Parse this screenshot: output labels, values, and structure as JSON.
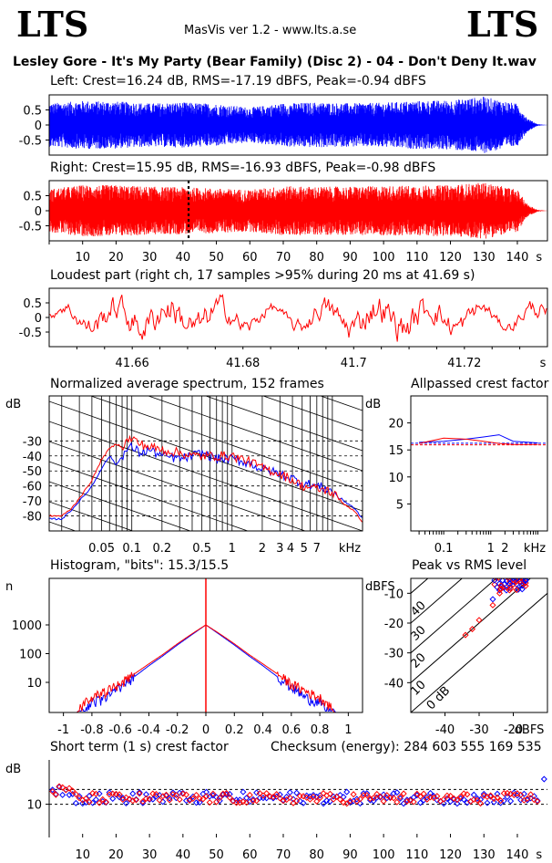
{
  "header": {
    "logo_left": "LTS",
    "logo_right": "LTS",
    "app": "MasVis ver 1.2 - www.lts.a.se",
    "file_title": "Lesley Gore - It's My Party (Bear Family) (Disc 2) - 04 - Don't Deny It.wav"
  },
  "colors": {
    "left": "#0000ff",
    "right": "#ff0000"
  },
  "panels": {
    "left_title": "Left: Crest=16.24 dB, RMS=-17.19 dBFS, Peak=-0.94 dBFS",
    "right_title": "Right: Crest=15.95 dB, RMS=-16.93 dBFS, Peak=-0.98 dBFS",
    "loudest_title": "Loudest part (right ch, 17 samples >95% during 20 ms at 41.69 s)",
    "spectrum_title": "Normalized average spectrum, 152 frames",
    "allpass_title": "Allpassed crest factor",
    "hist_title": "Histogram, \"bits\": 15.3/15.5",
    "peakrms_title": "Peak vs RMS level",
    "crest_title": "Short term (1 s) crest factor",
    "checksum": "Checksum (energy):   284 603 555 169 535"
  },
  "chart_data": [
    {
      "type": "line",
      "name": "left-waveform",
      "title": "Left: Crest=16.24 dB, RMS=-17.19 dBFS, Peak=-0.94 dBFS",
      "xlim": [
        0,
        149
      ],
      "ylim": [
        -1,
        1
      ],
      "yticks": [
        "0.5",
        "0",
        "-0.5"
      ],
      "peak_envelope_x": [
        0,
        10,
        20,
        30,
        40,
        50,
        60,
        70,
        80,
        90,
        100,
        110,
        120,
        130,
        140,
        143,
        146,
        149
      ],
      "peak_envelope_y": [
        0.72,
        0.8,
        0.78,
        0.72,
        0.75,
        0.7,
        0.58,
        0.72,
        0.75,
        0.72,
        0.74,
        0.8,
        0.82,
        0.94,
        0.7,
        0.22,
        0.03,
        0.0
      ]
    },
    {
      "type": "line",
      "name": "right-waveform",
      "title": "Right: Crest=15.95 dB, RMS=-16.93 dBFS, Peak=-0.98 dBFS",
      "xlim": [
        0,
        149
      ],
      "ylim": [
        -1,
        1
      ],
      "yticks": [
        "0.5",
        "0",
        "-0.5"
      ],
      "xtick_labels": [
        "10",
        "20",
        "30",
        "40",
        "50",
        "60",
        "70",
        "80",
        "90",
        "100",
        "110",
        "120",
        "130",
        "140",
        "s"
      ],
      "marker_x": 41.69,
      "peak_envelope_x": [
        0,
        10,
        20,
        30,
        40,
        50,
        60,
        70,
        80,
        90,
        100,
        110,
        120,
        130,
        140,
        143,
        146,
        149
      ],
      "peak_envelope_y": [
        0.72,
        0.85,
        0.85,
        0.8,
        0.78,
        0.74,
        0.7,
        0.82,
        0.8,
        0.8,
        0.82,
        0.84,
        0.85,
        0.94,
        0.7,
        0.22,
        0.03,
        0.0
      ]
    },
    {
      "type": "line",
      "name": "loudest-part",
      "title": "Loudest part (right ch, 17 samples >95% during 20 ms at 41.69 s)",
      "xlim": [
        41.645,
        41.735
      ],
      "ylim": [
        -1,
        1
      ],
      "yticks": [
        "0.5",
        "0",
        "-0.5"
      ],
      "xtick_labels": [
        "41.66",
        "41.68",
        "41.7",
        "41.72",
        "s"
      ]
    },
    {
      "type": "line",
      "name": "average-spectrum",
      "title": "Normalized average spectrum, 152 frames",
      "ylabel": "dB",
      "xlabel": "kHz",
      "xscale": "log",
      "ylim": [
        -90,
        0
      ],
      "yticks": [
        "-30",
        "-40",
        "-50",
        "-60",
        "-70",
        "-80"
      ],
      "xtick_labels": [
        "0.05",
        "0.1",
        "0.2",
        "0.5",
        "1",
        "2",
        "3",
        "4",
        "5",
        "7",
        "kHz"
      ],
      "freq_khz": [
        0.02,
        0.025,
        0.03,
        0.04,
        0.05,
        0.06,
        0.07,
        0.08,
        0.09,
        0.1,
        0.12,
        0.15,
        0.2,
        0.3,
        0.4,
        0.5,
        0.7,
        1,
        1.5,
        2,
        3,
        4,
        5,
        7,
        9,
        11,
        13,
        16,
        20
      ],
      "series": [
        {
          "name": "Left",
          "values": [
            -82,
            -76,
            -70,
            -60,
            -48,
            -40,
            -46,
            -40,
            -36,
            -34,
            -38,
            -36,
            -40,
            -42,
            -40,
            -38,
            -42,
            -42,
            -45,
            -49,
            -52,
            -55,
            -58,
            -60,
            -62,
            -66,
            -70,
            -74,
            -82
          ]
        },
        {
          "name": "Right",
          "values": [
            -80,
            -75,
            -68,
            -56,
            -42,
            -35,
            -32,
            -34,
            -30,
            -28,
            -32,
            -34,
            -36,
            -38,
            -40,
            -40,
            -40,
            -40,
            -44,
            -48,
            -52,
            -56,
            -60,
            -62,
            -63,
            -67,
            -72,
            -76,
            -84
          ]
        }
      ]
    },
    {
      "type": "line",
      "name": "allpassed-crest",
      "title": "Allpassed crest factor",
      "ylabel": "dB",
      "xlabel": "kHz",
      "xscale": "log",
      "ylim": [
        0,
        25
      ],
      "yticks": [
        "20",
        "15",
        "10",
        "5"
      ],
      "xtick_labels": [
        "0.1",
        "1",
        "2",
        "kHz"
      ],
      "freq_khz": [
        0.03,
        0.1,
        0.3,
        0.7,
        1.5,
        3,
        10
      ],
      "series": [
        {
          "name": "Left",
          "values": [
            16.4,
            16.6,
            17.0,
            17.4,
            17.8,
            16.6,
            16.3
          ]
        },
        {
          "name": "Right",
          "values": [
            16.2,
            17.2,
            17.0,
            16.6,
            16.2,
            16.0,
            16.0
          ]
        }
      ],
      "reference_left": 16.24,
      "reference_right": 15.95
    },
    {
      "type": "line",
      "name": "histogram",
      "title": "Histogram, \"bits\": 15.3/15.5",
      "ylabel": "n",
      "yscale": "log",
      "yticks": [
        "1000",
        "100",
        "10"
      ],
      "xlim": [
        -1.1,
        1.1
      ],
      "xtick_labels": [
        "-1",
        "-0.8",
        "-0.6",
        "-0.4",
        "-0.2",
        "0",
        "0.2",
        "0.4",
        "0.6",
        "0.8",
        "1"
      ],
      "x": [
        0,
        0.1,
        0.2,
        0.3,
        0.4,
        0.5,
        0.6,
        0.7,
        0.8,
        0.85,
        0.9
      ],
      "series": [
        {
          "name": "Left",
          "values": [
            1000,
            450,
            200,
            85,
            38,
            16,
            7,
            3,
            2,
            1,
            1
          ]
        },
        {
          "name": "Right",
          "values": [
            1000,
            480,
            220,
            95,
            44,
            20,
            9,
            5,
            3,
            2,
            1
          ]
        }
      ]
    },
    {
      "type": "scatter",
      "name": "peak-vs-rms",
      "title": "Peak vs RMS level",
      "ylabel": "dBFS",
      "xlabel": "dBFS",
      "xlim": [
        -50,
        -10
      ],
      "ylim": [
        -50,
        -5
      ],
      "xtick_labels": [
        "-40",
        "-30",
        "-20",
        "dBFS"
      ],
      "yticks": [
        "-10",
        "-20",
        "-30",
        "-40"
      ],
      "diagonal_labels": [
        "40",
        "30",
        "20",
        "10",
        "0 dB"
      ],
      "series": [
        {
          "name": "Left",
          "points": [
            [
              -18,
              -4
            ],
            [
              -19,
              -5
            ],
            [
              -17,
              -3
            ],
            [
              -20,
              -6
            ],
            [
              -19,
              -7
            ],
            [
              -21,
              -8
            ],
            [
              -22,
              -6
            ],
            [
              -18,
              -6
            ],
            [
              -20,
              -5
            ],
            [
              -23,
              -8
            ],
            [
              -24,
              -9
            ],
            [
              -21,
              -5
            ],
            [
              -16,
              -4
            ],
            [
              -19,
              -3
            ],
            [
              -22,
              -9
            ],
            [
              -26,
              -12
            ],
            [
              -17,
              -6
            ]
          ]
        },
        {
          "name": "Right",
          "points": [
            [
              -17,
              -5
            ],
            [
              -18,
              -6
            ],
            [
              -19,
              -4
            ],
            [
              -16,
              -4
            ],
            [
              -20,
              -7
            ],
            [
              -21,
              -6
            ],
            [
              -18,
              -3
            ],
            [
              -22,
              -8
            ],
            [
              -15,
              -4
            ],
            [
              -24,
              -10
            ],
            [
              -26,
              -14
            ],
            [
              -32,
              -22
            ],
            [
              -34,
              -24
            ],
            [
              -30,
              -19
            ],
            [
              -19,
              -6
            ],
            [
              -17,
              -7
            ],
            [
              -20,
              -4
            ]
          ]
        }
      ]
    },
    {
      "type": "scatter",
      "name": "short-term-crest",
      "title": "Short term (1 s) crest factor",
      "ylabel": "dB",
      "xlim": [
        0,
        149
      ],
      "ylim": [
        0,
        25
      ],
      "yticks": [
        "10"
      ],
      "xtick_labels": [
        "10",
        "20",
        "30",
        "40",
        "50",
        "60",
        "70",
        "80",
        "90",
        "100",
        "110",
        "120",
        "130",
        "140",
        "s"
      ],
      "reference_lines": [
        10,
        15
      ],
      "series": [
        {
          "name": "Left",
          "mean": 12.2,
          "spread": 2.0,
          "outliers": [
            [
              148,
              18.5
            ]
          ]
        },
        {
          "name": "Right",
          "mean": 12.0,
          "spread": 1.8,
          "outliers": []
        }
      ]
    }
  ]
}
